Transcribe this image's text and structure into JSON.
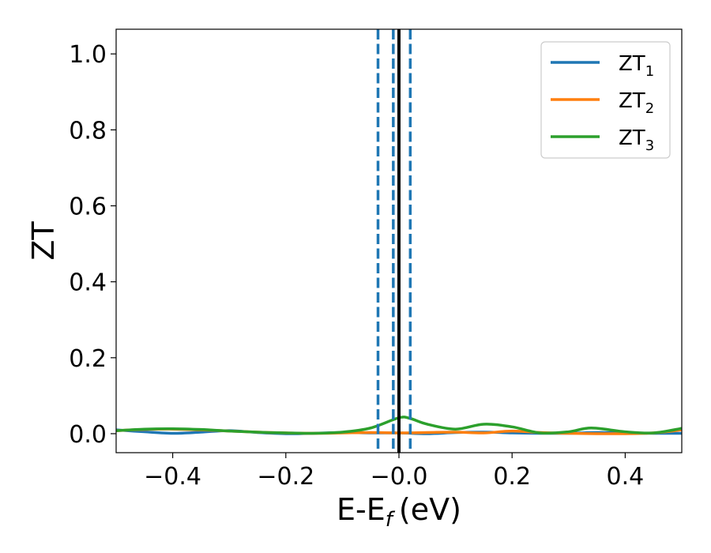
{
  "chart_data": {
    "type": "line",
    "xlabel": "E-E",
    "xlabel_sub": "f",
    "xlabel_unit": "(eV)",
    "ylabel": "ZT",
    "xlim": [
      -0.5,
      0.5
    ],
    "ylim": [
      -0.05,
      1.065
    ],
    "xticks": [
      -0.4,
      -0.2,
      0.0,
      0.2,
      0.4
    ],
    "xtick_labels": [
      "−0.4",
      "−0.2",
      "−0.0",
      "0.2",
      "0.4"
    ],
    "yticks": [
      0.0,
      0.2,
      0.4,
      0.6,
      0.8,
      1.0
    ],
    "ytick_labels": [
      "0.0",
      "0.2",
      "0.4",
      "0.6",
      "0.8",
      "1.0"
    ],
    "grid": false,
    "legend_position": "top-right",
    "series": [
      {
        "name": "ZT",
        "name_sub": "1",
        "color": "#1f77b4",
        "x": [
          -0.5,
          -0.45,
          -0.4,
          -0.35,
          -0.3,
          -0.25,
          -0.2,
          -0.15,
          -0.1,
          -0.05,
          0.0,
          0.05,
          0.1,
          0.15,
          0.2,
          0.25,
          0.3,
          0.35,
          0.4,
          0.45,
          0.5
        ],
        "y": [
          0.01,
          0.005,
          0.001,
          0.004,
          0.008,
          0.003,
          0.0,
          0.001,
          0.003,
          0.002,
          0.002,
          0.0,
          0.003,
          0.004,
          0.002,
          0.001,
          0.001,
          0.003,
          0.002,
          0.001,
          0.001
        ]
      },
      {
        "name": "ZT",
        "name_sub": "2",
        "color": "#ff7f0e",
        "x": [
          -0.5,
          -0.45,
          -0.4,
          -0.35,
          -0.3,
          -0.25,
          -0.2,
          -0.15,
          -0.1,
          -0.05,
          0.0,
          0.05,
          0.1,
          0.15,
          0.2,
          0.25,
          0.3,
          0.35,
          0.4,
          0.45,
          0.5
        ],
        "y": [
          0.008,
          0.011,
          0.012,
          0.01,
          0.007,
          0.004,
          0.002,
          0.001,
          0.002,
          0.003,
          0.002,
          0.003,
          0.004,
          0.002,
          0.007,
          0.003,
          0.001,
          0.0,
          0.0,
          0.002,
          0.01
        ]
      },
      {
        "name": "ZT",
        "name_sub": "3",
        "color": "#2ca02c",
        "x": [
          -0.5,
          -0.45,
          -0.4,
          -0.35,
          -0.3,
          -0.25,
          -0.2,
          -0.15,
          -0.1,
          -0.05,
          0.0,
          0.02,
          0.05,
          0.1,
          0.15,
          0.2,
          0.25,
          0.3,
          0.34,
          0.4,
          0.45,
          0.5
        ],
        "y": [
          0.008,
          0.012,
          0.013,
          0.011,
          0.007,
          0.004,
          0.002,
          0.001,
          0.004,
          0.015,
          0.042,
          0.04,
          0.025,
          0.012,
          0.025,
          0.018,
          0.002,
          0.005,
          0.015,
          0.005,
          0.002,
          0.014
        ]
      }
    ],
    "vlines": [
      {
        "x": -0.037,
        "style": "dashed",
        "color": "#1f77b4"
      },
      {
        "x": -0.01,
        "style": "dashed",
        "color": "#1f77b4"
      },
      {
        "x": 0.02,
        "style": "dashed",
        "color": "#1f77b4"
      },
      {
        "x": 0.0,
        "style": "solid",
        "color": "#000000"
      }
    ]
  }
}
